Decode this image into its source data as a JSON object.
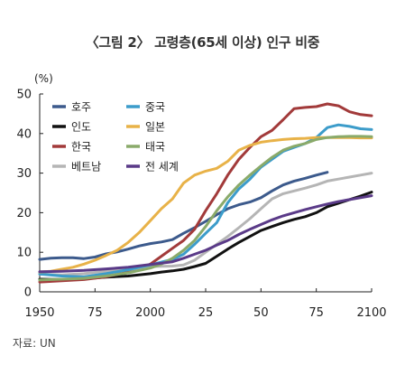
{
  "title": "〈그림 2〉 고령층(65세 이상) 인구 비중",
  "source": "자료: UN",
  "chart_data": {
    "type": "line",
    "title": "〈그림 2〉 고령층(65세 이상) 인구 비중",
    "ylabel": "(%)",
    "xlim": [
      1950,
      2100
    ],
    "ylim": [
      0,
      50
    ],
    "x_ticks": [
      1950,
      1975,
      2000,
      2025,
      2050,
      2075,
      2100
    ],
    "x_tick_labels": [
      "1950",
      "75",
      "2000",
      "25",
      "50",
      "75",
      "2100"
    ],
    "y_ticks": [
      0,
      10,
      20,
      30,
      40,
      50
    ],
    "grid": false,
    "legend_position": "top-left",
    "series": [
      {
        "name": "호주",
        "color": "#3c5a8c",
        "x": [
          1950,
          1955,
          1960,
          1965,
          1970,
          1975,
          1980,
          1985,
          1990,
          1995,
          2000,
          2005,
          2010,
          2015,
          2020,
          2025,
          2030,
          2035,
          2040,
          2045,
          2050,
          2055,
          2060,
          2065,
          2070,
          2075,
          2080
        ],
        "y": [
          8.2,
          8.5,
          8.6,
          8.6,
          8.4,
          8.8,
          9.6,
          10.1,
          10.8,
          11.6,
          12.2,
          12.6,
          13.2,
          14.8,
          16.2,
          17.8,
          19.5,
          21.0,
          22.0,
          22.7,
          23.8,
          25.5,
          27.0,
          28.0,
          28.7,
          29.5,
          30.2
        ]
      },
      {
        "name": "인도",
        "color": "#111111",
        "x": [
          1950,
          1960,
          1970,
          1980,
          1990,
          2000,
          2005,
          2010,
          2015,
          2020,
          2025,
          2030,
          2035,
          2040,
          2045,
          2050,
          2055,
          2060,
          2065,
          2070,
          2075,
          2080,
          2085,
          2090,
          2095,
          2100
        ],
        "y": [
          3.2,
          3.1,
          3.3,
          3.7,
          4.0,
          4.6,
          5.0,
          5.3,
          5.7,
          6.4,
          7.2,
          9.0,
          10.8,
          12.5,
          14.0,
          15.5,
          16.5,
          17.5,
          18.3,
          19.0,
          20.0,
          21.5,
          22.4,
          23.3,
          24.2,
          25.2
        ]
      },
      {
        "name": "한국",
        "color": "#a23a3a",
        "x": [
          1950,
          1960,
          1970,
          1980,
          1990,
          1995,
          2000,
          2005,
          2010,
          2015,
          2020,
          2025,
          2030,
          2035,
          2040,
          2045,
          2050,
          2055,
          2060,
          2065,
          2070,
          2075,
          2080,
          2085,
          2090,
          2095,
          2100
        ],
        "y": [
          2.5,
          2.8,
          3.1,
          3.8,
          5.0,
          5.8,
          7.0,
          9.0,
          11.0,
          13.0,
          15.8,
          20.5,
          24.8,
          29.5,
          33.5,
          36.5,
          39.2,
          40.8,
          43.5,
          46.3,
          46.6,
          46.8,
          47.5,
          47.0,
          45.5,
          44.8,
          44.5
        ]
      },
      {
        "name": "베트남",
        "color": "#b5b5b5",
        "x": [
          1950,
          1960,
          1970,
          1980,
          1990,
          2000,
          2010,
          2015,
          2020,
          2025,
          2030,
          2035,
          2040,
          2045,
          2050,
          2055,
          2060,
          2065,
          2070,
          2075,
          2080,
          2085,
          2090,
          2095,
          2100
        ],
        "y": [
          4.5,
          4.3,
          4.6,
          5.2,
          5.6,
          6.4,
          6.5,
          6.8,
          8.0,
          10.0,
          12.0,
          14.0,
          16.2,
          18.5,
          21.0,
          23.5,
          24.8,
          25.5,
          26.2,
          27.0,
          28.0,
          28.5,
          29.0,
          29.5,
          30.0
        ]
      },
      {
        "name": "중국",
        "color": "#3c9cca",
        "x": [
          1950,
          1960,
          1970,
          1980,
          1990,
          2000,
          2005,
          2010,
          2015,
          2020,
          2025,
          2030,
          2035,
          2040,
          2045,
          2050,
          2055,
          2060,
          2065,
          2070,
          2075,
          2080,
          2085,
          2090,
          2095,
          2100
        ],
        "y": [
          4.5,
          4.0,
          3.8,
          4.6,
          5.6,
          6.8,
          7.5,
          8.2,
          9.5,
          12.0,
          14.8,
          17.5,
          22.5,
          26.0,
          28.5,
          31.5,
          33.5,
          35.5,
          36.5,
          37.5,
          39.0,
          41.5,
          42.2,
          41.8,
          41.2,
          41.0
        ]
      },
      {
        "name": "일본",
        "color": "#e8b248",
        "x": [
          1950,
          1955,
          1960,
          1965,
          1970,
          1975,
          1980,
          1985,
          1990,
          1995,
          2000,
          2005,
          2010,
          2015,
          2020,
          2025,
          2030,
          2035,
          2040,
          2045,
          2050,
          2055,
          2060,
          2065,
          2070,
          2075,
          2080,
          2085,
          2090,
          2095,
          2100
        ],
        "y": [
          5.0,
          5.2,
          5.7,
          6.2,
          7.0,
          8.0,
          9.2,
          10.5,
          12.5,
          15.0,
          18.0,
          21.0,
          23.5,
          27.5,
          29.5,
          30.5,
          31.2,
          33.0,
          35.8,
          37.0,
          37.8,
          38.2,
          38.5,
          38.7,
          38.8,
          39.0,
          39.0,
          39.0,
          39.0,
          38.9,
          38.9
        ]
      },
      {
        "name": "태국",
        "color": "#8aaa6a",
        "x": [
          1950,
          1960,
          1970,
          1980,
          1990,
          2000,
          2005,
          2010,
          2015,
          2020,
          2025,
          2030,
          2035,
          2040,
          2045,
          2050,
          2055,
          2060,
          2065,
          2070,
          2075,
          2080,
          2085,
          2090,
          2095,
          2100
        ],
        "y": [
          3.0,
          3.2,
          3.4,
          4.0,
          4.8,
          6.0,
          7.0,
          8.5,
          10.5,
          13.0,
          16.5,
          20.5,
          24.0,
          27.0,
          29.5,
          31.8,
          34.0,
          35.8,
          36.8,
          37.5,
          38.5,
          39.0,
          39.2,
          39.3,
          39.3,
          39.2
        ]
      },
      {
        "name": "전 세계",
        "color": "#5a3a88",
        "x": [
          1950,
          1960,
          1970,
          1980,
          1990,
          2000,
          2010,
          2015,
          2020,
          2025,
          2030,
          2035,
          2040,
          2045,
          2050,
          2055,
          2060,
          2065,
          2070,
          2075,
          2080,
          2085,
          2090,
          2095,
          2100
        ],
        "y": [
          5.1,
          5.2,
          5.4,
          5.8,
          6.2,
          6.9,
          7.6,
          8.5,
          9.5,
          10.5,
          11.8,
          13.0,
          14.5,
          15.8,
          17.0,
          18.2,
          19.2,
          20.0,
          20.8,
          21.5,
          22.2,
          22.8,
          23.3,
          23.8,
          24.3
        ]
      }
    ]
  }
}
